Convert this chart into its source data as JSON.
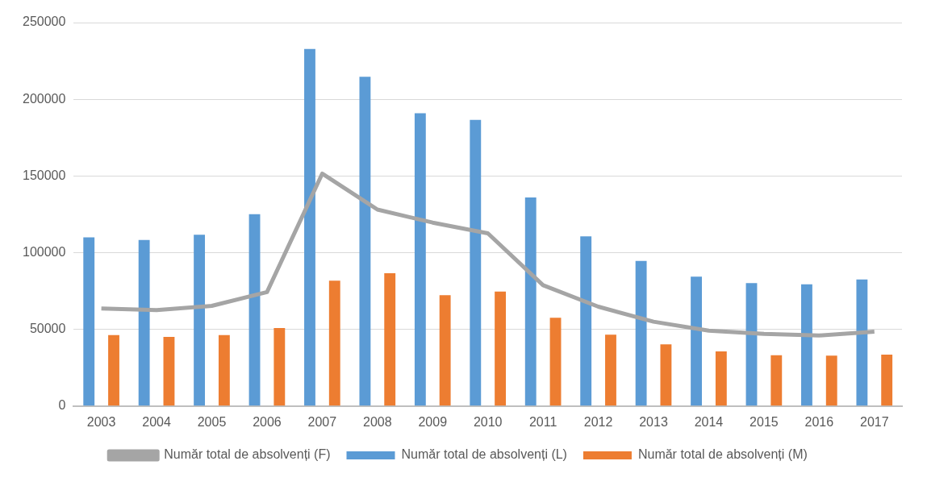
{
  "chart_data": {
    "type": "bar",
    "categories": [
      "2003",
      "2004",
      "2005",
      "2006",
      "2007",
      "2008",
      "2009",
      "2010",
      "2011",
      "2012",
      "2013",
      "2014",
      "2015",
      "2016",
      "2017"
    ],
    "series": [
      {
        "name": "Număr total de absolvenți (L)",
        "color": "#5b9bd5",
        "values": [
          110000,
          108300,
          111700,
          125100,
          232800,
          214700,
          190900,
          186600,
          136000,
          110600,
          94600,
          84400,
          80200,
          79400,
          82500
        ]
      },
      {
        "name": "Număr total de absolvenți (M)",
        "color": "#ed7d31",
        "values": [
          46200,
          45100,
          46200,
          50900,
          81700,
          86600,
          72300,
          74700,
          57500,
          46500,
          40200,
          35600,
          33100,
          32900,
          33500
        ]
      },
      {
        "name": "Număr total de absolvenți (F)",
        "type": "line",
        "color": "#a5a5a5",
        "values": [
          63600,
          62600,
          65300,
          74300,
          151500,
          128100,
          119600,
          112600,
          78800,
          64800,
          55000,
          49200,
          47100,
          46000,
          48500
        ]
      }
    ],
    "ylim": [
      0,
      250000
    ],
    "yticks": [
      0,
      50000,
      100000,
      150000,
      200000,
      250000
    ],
    "grid": "y",
    "legend": "bottom",
    "marker": "none"
  }
}
